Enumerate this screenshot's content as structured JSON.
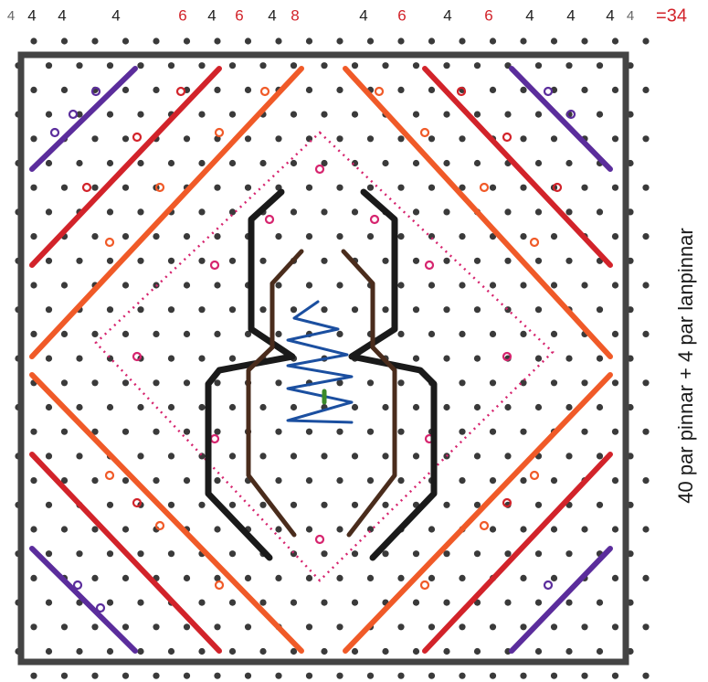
{
  "top_labels": [
    {
      "text": "4",
      "color": "#666666"
    },
    {
      "text": "4",
      "color": "#222222"
    },
    {
      "text": "4",
      "color": "#222222"
    },
    {
      "text": "4",
      "color": "#222222"
    },
    {
      "text": "6",
      "color": "#d2232a"
    },
    {
      "text": "4",
      "color": "#222222"
    },
    {
      "text": "6",
      "color": "#d2232a"
    },
    {
      "text": "4",
      "color": "#222222"
    },
    {
      "text": "8",
      "color": "#d2232a"
    },
    {
      "text": "4",
      "color": "#222222"
    },
    {
      "text": "6",
      "color": "#d2232a"
    },
    {
      "text": "4",
      "color": "#222222"
    },
    {
      "text": "6",
      "color": "#d2232a"
    },
    {
      "text": "4",
      "color": "#222222"
    },
    {
      "text": "4",
      "color": "#222222"
    },
    {
      "text": "4",
      "color": "#222222"
    },
    {
      "text": "4",
      "color": "#666666"
    }
  ],
  "total": "=34",
  "side_note": "40 par pinnar + 4 par lanpinnar"
}
